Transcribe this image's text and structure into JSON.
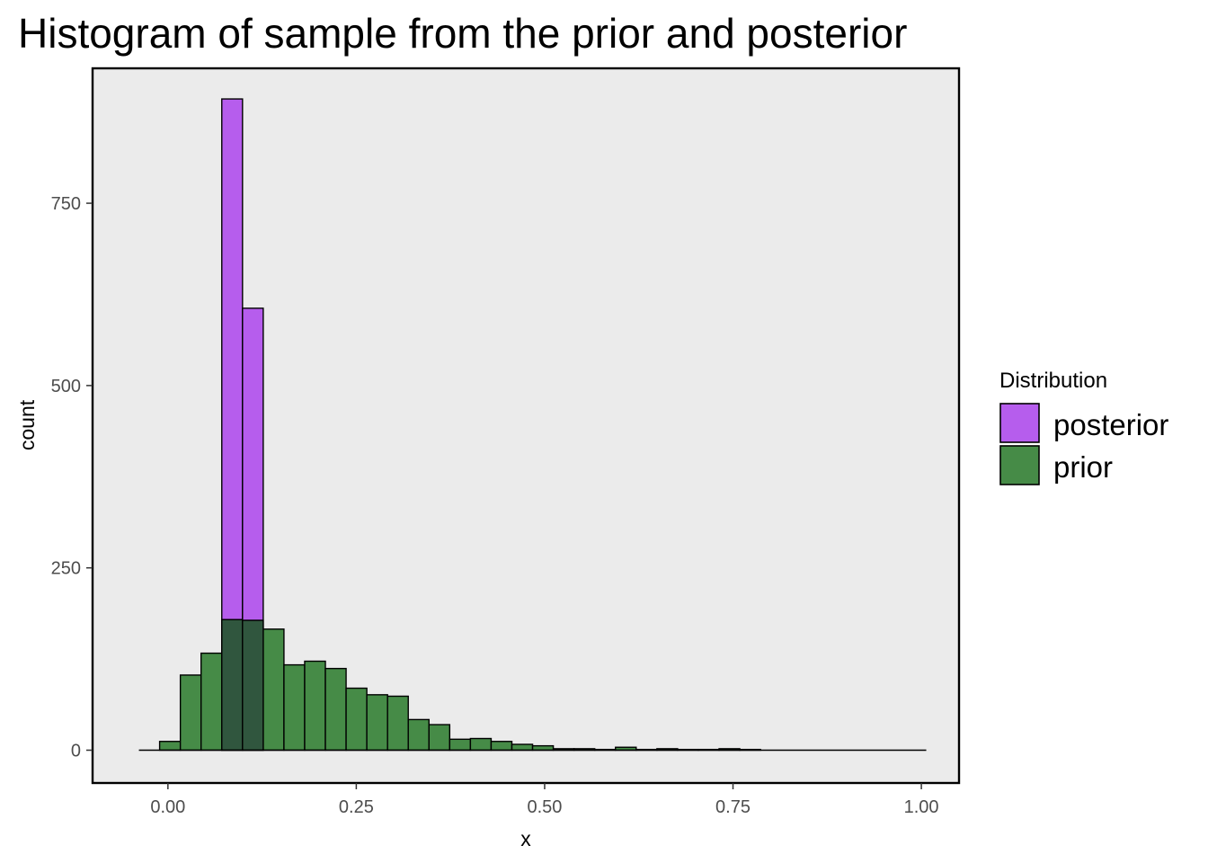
{
  "chart_data": {
    "type": "bar",
    "title": "Histogram of sample from the prior and posterior",
    "xlabel": "x",
    "ylabel": "count",
    "xlim": [
      -0.1,
      1.05
    ],
    "ylim": [
      -45,
      935
    ],
    "x_ticks": [
      {
        "value": 0.0,
        "label": "0.00"
      },
      {
        "value": 0.25,
        "label": "0.25"
      },
      {
        "value": 0.5,
        "label": "0.50"
      },
      {
        "value": 0.75,
        "label": "0.75"
      },
      {
        "value": 1.0,
        "label": "1.00"
      }
    ],
    "y_ticks": [
      {
        "value": 0,
        "label": "0"
      },
      {
        "value": 250,
        "label": "250"
      },
      {
        "value": 500,
        "label": "500"
      },
      {
        "value": 750,
        "label": "750"
      }
    ],
    "bins": {
      "start": -0.0385,
      "width": 0.0275,
      "count": 38
    },
    "grid": false,
    "legend": {
      "title": "Distribution",
      "position": "right"
    },
    "series": [
      {
        "name": "posterior",
        "color": "#b65ded",
        "values": [
          0,
          0,
          0,
          0,
          893,
          606,
          0,
          0,
          0,
          0,
          0,
          0,
          0,
          0,
          0,
          0,
          0,
          0,
          0,
          0,
          0,
          0,
          0,
          0,
          0,
          0,
          0,
          0,
          0,
          0,
          0,
          0,
          0,
          0,
          0,
          0,
          0,
          0
        ]
      },
      {
        "name": "prior",
        "color": "#468b47",
        "values": [
          0,
          12,
          103,
          133,
          179,
          178,
          166,
          117,
          122,
          112,
          85,
          76,
          74,
          42,
          35,
          15,
          16,
          12,
          8,
          6,
          2,
          2,
          1,
          4,
          1,
          2,
          1,
          1,
          2,
          1,
          0,
          0,
          0,
          0,
          0,
          0,
          0,
          0
        ]
      }
    ],
    "overlap_color": "#30563e",
    "panel_color": "#ebebeb"
  }
}
